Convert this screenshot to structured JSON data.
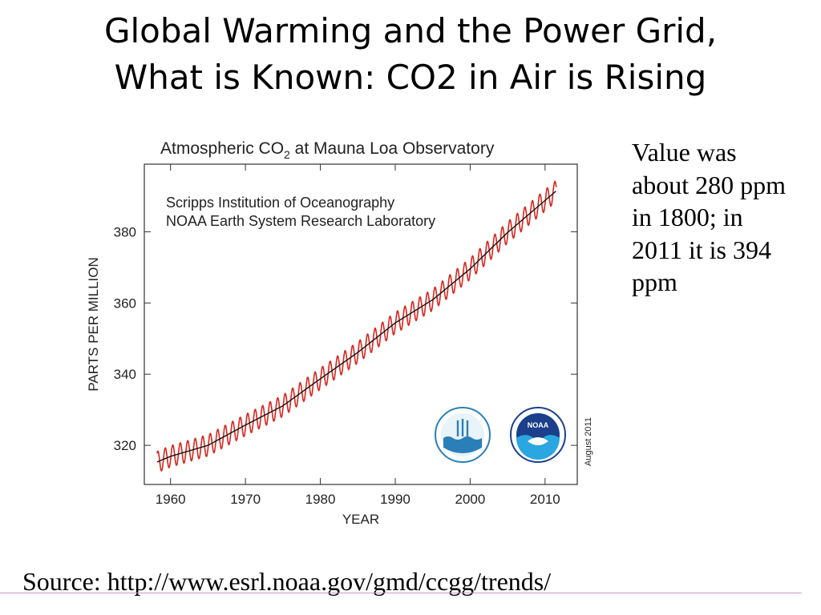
{
  "title": {
    "line1": "Global Warming and the Power Grid,",
    "line2": "What is Known: CO2 in Air is Rising"
  },
  "note": "Value was about 280 ppm in 1800; in 2011 it is 394 ppm",
  "source": "Source: http://www.esrl.noaa.gov/gmd/ccgg/trends/",
  "colors": {
    "monthly": "#d7261e",
    "trend": "#111111",
    "rule": "#c89bc8"
  },
  "chart_data": {
    "type": "line",
    "title": "Atmospheric CO",
    "title_subscript": "2",
    "title_rest": " at Mauna Loa Observatory",
    "credit_lines": [
      "Scripps Institution of Oceanography",
      "NOAA Earth System Research Laboratory"
    ],
    "xlabel": "YEAR",
    "ylabel": "PARTS PER MILLION",
    "date_stamp": "August 2011",
    "xlim": [
      1956.5,
      2014.3
    ],
    "ylim": [
      309,
      399
    ],
    "xticks": [
      1960,
      1970,
      1980,
      1990,
      2000,
      2010
    ],
    "yticks": [
      320,
      340,
      360,
      380
    ],
    "grid": false,
    "seasonal_amplitude_ppm": 6,
    "logos": [
      "scripps-ucsd-logo",
      "noaa-logo"
    ],
    "series": [
      {
        "role": "monthly",
        "color": "#d7261e",
        "x": [
          1958.2,
          1960,
          1965,
          1970,
          1975,
          1980,
          1985,
          1990,
          1995,
          2000,
          2005,
          2011.5
        ],
        "y": [
          315.3,
          316.9,
          320.0,
          325.7,
          331.1,
          338.7,
          346.1,
          354.4,
          360.9,
          369.6,
          379.8,
          391.5
        ]
      },
      {
        "role": "trend",
        "color": "#111111",
        "x": [
          1958.2,
          1960,
          1965,
          1970,
          1975,
          1980,
          1985,
          1990,
          1995,
          2000,
          2005,
          2011.5
        ],
        "y": [
          315.3,
          316.9,
          320.0,
          325.7,
          331.1,
          338.7,
          346.1,
          354.4,
          360.9,
          369.6,
          379.8,
          391.5
        ]
      }
    ]
  }
}
